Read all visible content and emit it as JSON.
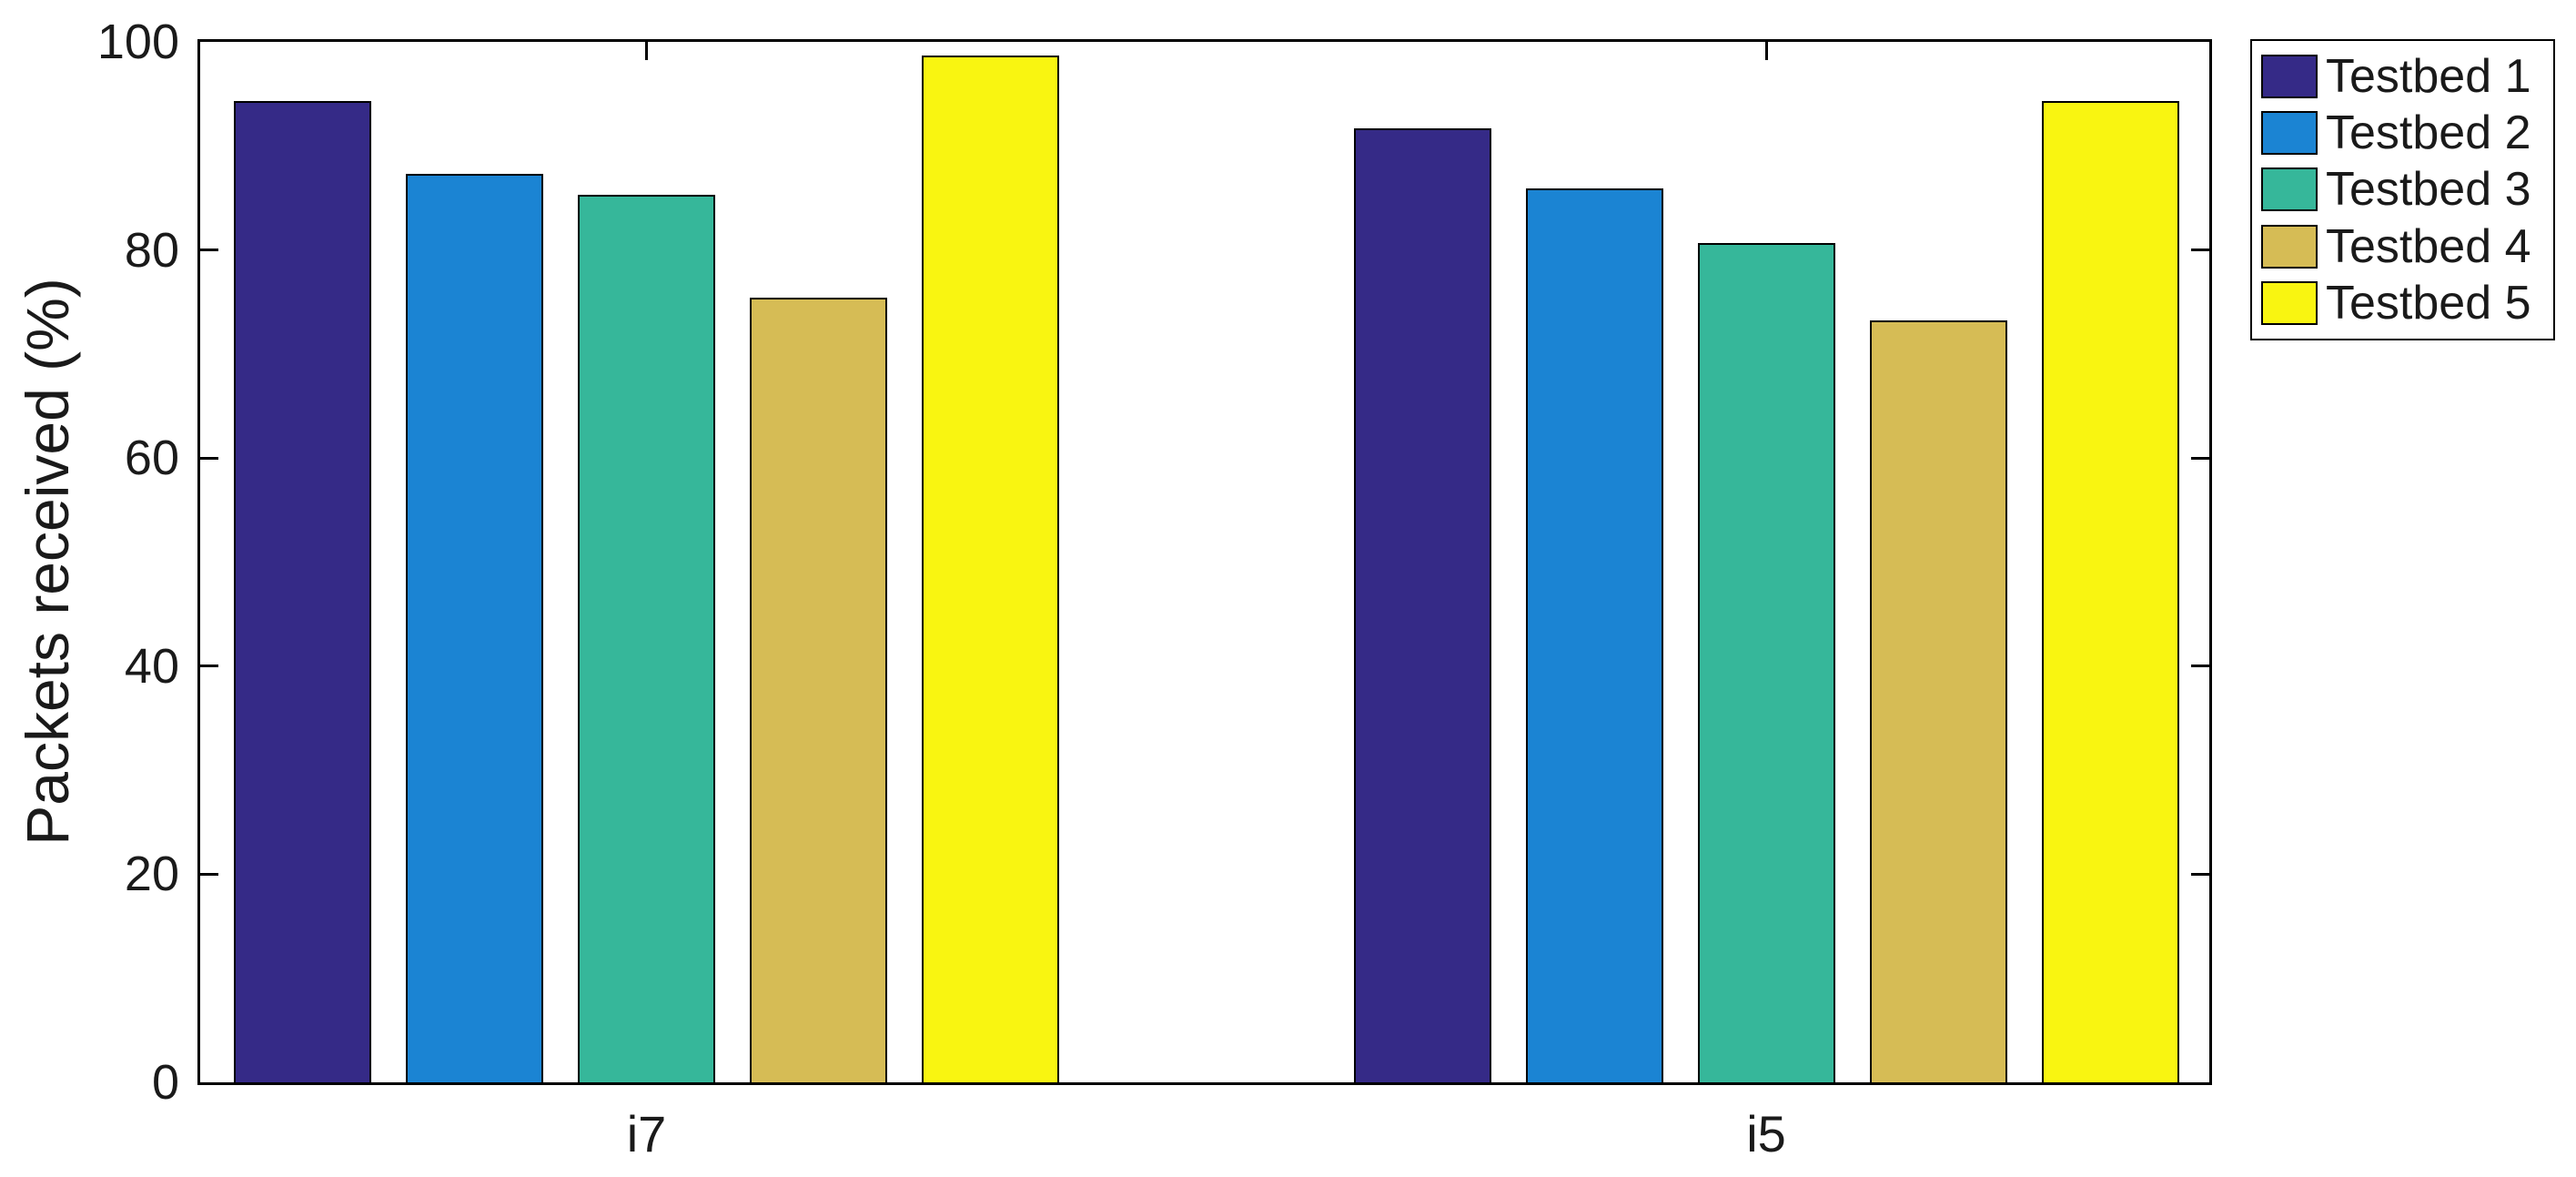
{
  "figure": {
    "background": "#FFFFFF"
  },
  "chart_data": {
    "type": "bar",
    "title": "",
    "xlabel": "",
    "ylabel": "Packets received (%)",
    "categories": [
      "i7",
      "i5"
    ],
    "series": [
      {
        "name": "Testbed 1",
        "color": "#352A87",
        "values": [
          94.3,
          91.7
        ]
      },
      {
        "name": "Testbed 2",
        "color": "#1B84D3",
        "values": [
          87.3,
          85.9
        ]
      },
      {
        "name": "Testbed 3",
        "color": "#36B79A",
        "values": [
          85.3,
          80.7
        ]
      },
      {
        "name": "Testbed 4",
        "color": "#D6BC55",
        "values": [
          75.4,
          73.2
        ]
      },
      {
        "name": "Testbed 5",
        "color": "#F9F511",
        "values": [
          98.7,
          94.3
        ]
      }
    ],
    "ylim": [
      0,
      100
    ],
    "yticks": [
      0,
      20,
      40,
      60,
      80,
      100
    ],
    "grid": false,
    "legend": {
      "position": "outside-top-right",
      "entries": [
        "Testbed 1",
        "Testbed 2",
        "Testbed 3",
        "Testbed 4",
        "Testbed 5"
      ]
    },
    "bar_edge_color": "#000000",
    "axis_color": "#000000",
    "text_color": "#1A1A1A"
  }
}
